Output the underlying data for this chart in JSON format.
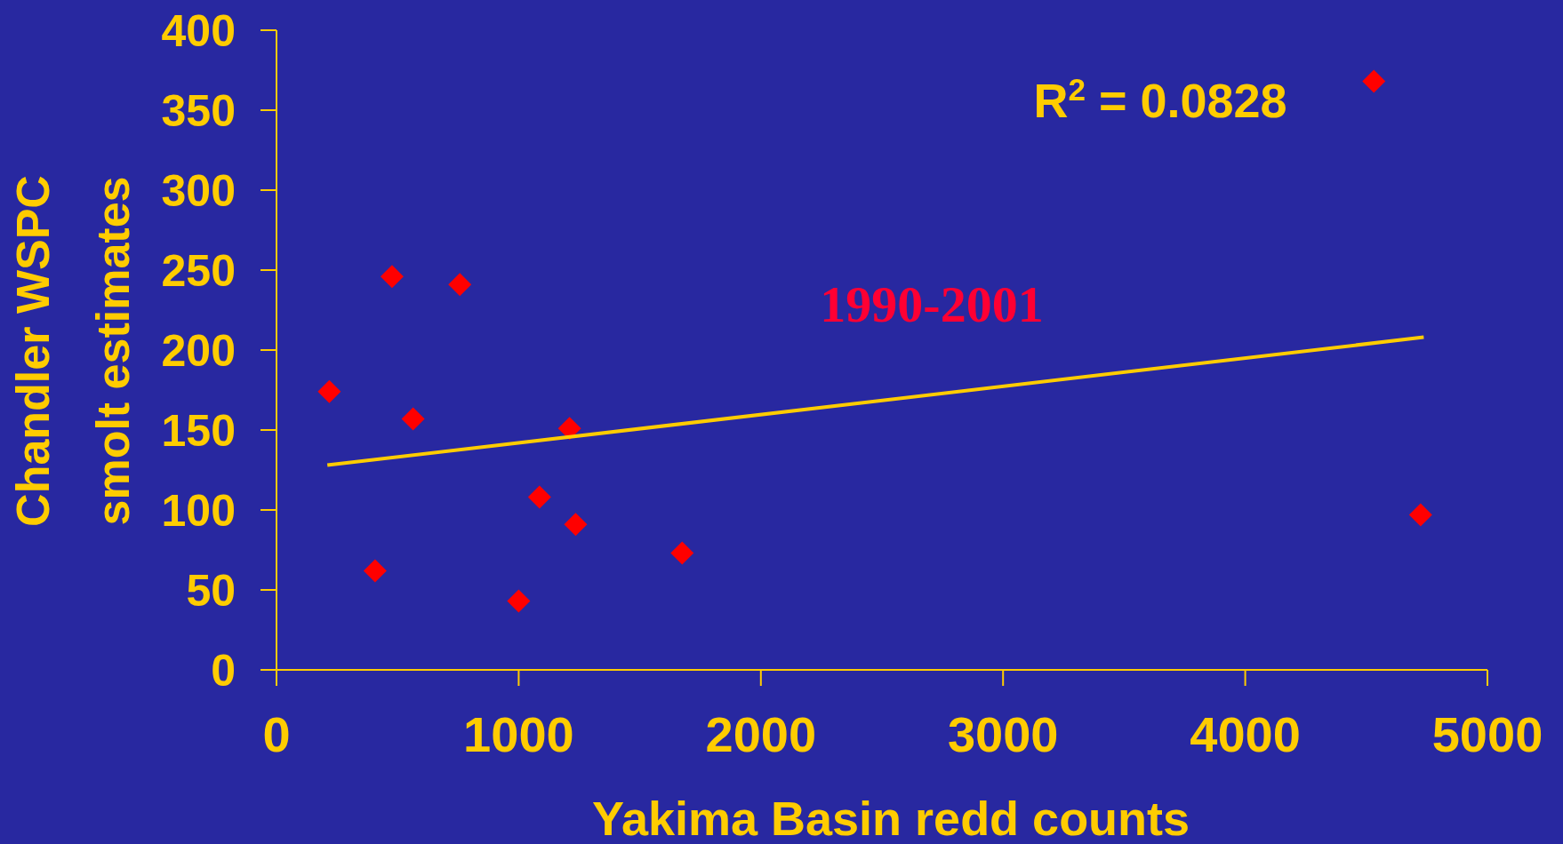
{
  "chart_data": {
    "type": "scatter",
    "xlabel": "Yakima Basin redd counts",
    "ylabel": "Chandler WSPC smolt estimates",
    "xlim": [
      0,
      5000
    ],
    "xticks": [
      0,
      1000,
      2000,
      3000,
      4000,
      5000
    ],
    "ylim": [
      0,
      400
    ],
    "yticks": [
      0,
      50,
      100,
      150,
      200,
      250,
      300,
      350,
      400
    ],
    "marker": "diamond",
    "grid": false,
    "series": [
      {
        "color": "#ff0000",
        "x": [
          218,
          477,
          757,
          564,
          407,
          1000,
          1086,
          1210,
          1235,
          1675,
          4531,
          4724
        ],
        "values": [
          174,
          246,
          241,
          157,
          62,
          43,
          108,
          151,
          91,
          73,
          368,
          97
        ]
      },
      {
        "type": "line",
        "color": "#ffcc00",
        "marker": "none",
        "x": [
          210,
          4737
        ],
        "values": [
          128,
          208
        ]
      }
    ],
    "annotations": [
      "R$^{2}$ = 0.0828",
      "1990-2001"
    ]
  }
}
